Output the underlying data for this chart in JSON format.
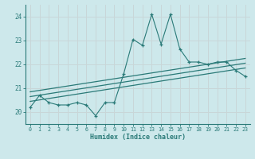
{
  "x_data": [
    0,
    1,
    2,
    3,
    4,
    5,
    6,
    7,
    8,
    9,
    10,
    11,
    12,
    13,
    14,
    15,
    16,
    17,
    18,
    19,
    20,
    21,
    22,
    23
  ],
  "y_data": [
    20.2,
    20.7,
    20.4,
    20.3,
    20.3,
    20.4,
    20.3,
    19.85,
    20.4,
    20.4,
    21.6,
    23.05,
    22.8,
    24.1,
    22.85,
    24.1,
    22.65,
    22.1,
    22.1,
    22.0,
    22.1,
    22.1,
    21.75,
    21.5
  ],
  "trend_lines": [
    {
      "x": [
        0,
        23
      ],
      "y": [
        20.45,
        21.85
      ]
    },
    {
      "x": [
        0,
        23
      ],
      "y": [
        20.65,
        22.05
      ]
    },
    {
      "x": [
        0,
        23
      ],
      "y": [
        20.85,
        22.25
      ]
    }
  ],
  "xlim": [
    -0.5,
    23.5
  ],
  "ylim": [
    19.5,
    24.5
  ],
  "yticks": [
    20,
    21,
    22,
    23,
    24
  ],
  "xticks": [
    0,
    1,
    2,
    3,
    4,
    5,
    6,
    7,
    8,
    9,
    10,
    11,
    12,
    13,
    14,
    15,
    16,
    17,
    18,
    19,
    20,
    21,
    22,
    23
  ],
  "xlabel": "Humidex (Indice chaleur)",
  "bg_color": "#cde8eb",
  "grid_color": "#b0d8dc",
  "line_color": "#2a7a78",
  "trend_color": "#2a7a78",
  "tick_color": "#2a7a78",
  "spine_color": "#2a7a78"
}
